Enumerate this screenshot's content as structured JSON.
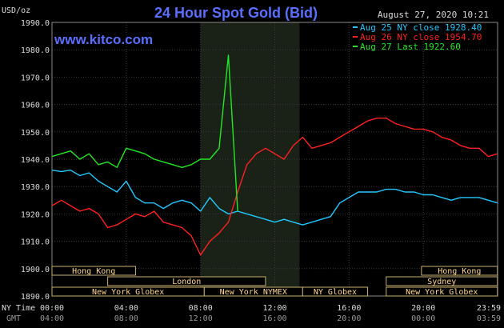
{
  "chart_data": {
    "type": "line",
    "title": "24 Hour Spot Gold (Bid)",
    "ylabel": "USD/oz",
    "watermark": "www.kitco.com",
    "timestamp": "August 27, 2020 10:21",
    "ylim": [
      1890,
      1990
    ],
    "y_ticks": [
      "1990.0",
      "1980.0",
      "1970.0",
      "1960.0",
      "1950.0",
      "1940.0",
      "1930.0",
      "1920.0",
      "1910.0",
      "1900.0",
      "1890.0"
    ],
    "x_tz_label_1": "NY Time",
    "x_tz_label_2": "GMT",
    "x_ticks_ny": [
      "00:00",
      "04:00",
      "08:00",
      "12:00",
      "16:00",
      "20:00",
      "23:59"
    ],
    "x_ticks_gmt": [
      "04:00",
      "08:00",
      "12:00",
      "16:00",
      "20:00",
      "00:00",
      "03:59"
    ],
    "grid": true,
    "legend_position": "top-right",
    "highlight_range_hours": [
      8.0,
      13.33
    ],
    "sessions": [
      {
        "label": "Hong Kong",
        "start": 0.0,
        "end": 4.5,
        "row": 0
      },
      {
        "label": "Hong Kong",
        "start": 19.9,
        "end": 23.99,
        "row": 0
      },
      {
        "label": "Sydney",
        "start": 18.0,
        "end": 23.99,
        "row": 1
      },
      {
        "label": "London",
        "start": 3.0,
        "end": 11.5,
        "row": 1
      },
      {
        "label": "New York Globex",
        "start": 0.0,
        "end": 8.2,
        "row": 2
      },
      {
        "label": "New York NYMEX",
        "start": 8.2,
        "end": 13.5,
        "row": 2
      },
      {
        "label": "NY Globex",
        "start": 13.5,
        "end": 17.0,
        "row": 2
      },
      {
        "label": "New York Globex",
        "start": 18.0,
        "end": 23.99,
        "row": 2
      }
    ],
    "x_hours": [
      0,
      0.5,
      1,
      1.5,
      2,
      2.5,
      3,
      3.5,
      4,
      4.5,
      5,
      5.5,
      6,
      6.5,
      7,
      7.5,
      8,
      8.5,
      9,
      9.5,
      10,
      10.5,
      11,
      11.5,
      12,
      12.5,
      13,
      13.5,
      14,
      14.5,
      15,
      15.5,
      16,
      16.5,
      17,
      17.5,
      18,
      18.5,
      19,
      19.5,
      20,
      20.5,
      21,
      21.5,
      22,
      22.5,
      23,
      23.5,
      23.99
    ],
    "series": [
      {
        "name": "Aug 25 NY close 1928.40",
        "color": "#22c8ff",
        "values": [
          1936,
          1935.5,
          1936,
          1934,
          1935,
          1932,
          1930,
          1928,
          1932,
          1926,
          1924,
          1924,
          1922,
          1924,
          1925,
          1924,
          1921,
          1926,
          1922,
          1920,
          1921,
          1920,
          1919,
          1918,
          1917,
          1918,
          1917,
          1916,
          1917,
          1918,
          1919,
          1924,
          1926,
          1928,
          1928,
          1928,
          1929,
          1929,
          1928,
          1928,
          1927,
          1927,
          1926,
          1925,
          1926,
          1926,
          1926,
          1925,
          1924
        ]
      },
      {
        "name": "Aug 26 NY close 1954.70",
        "color": "#ff2020",
        "values": [
          1923,
          1925,
          1923,
          1921,
          1922,
          1920,
          1915,
          1916,
          1918,
          1920,
          1919,
          1921,
          1917,
          1916,
          1915,
          1912,
          1905,
          1910,
          1913,
          1917,
          1928,
          1938,
          1942,
          1944,
          1942,
          1940,
          1945,
          1948,
          1944,
          1945,
          1946,
          1948,
          1950,
          1952,
          1954,
          1955,
          1955,
          1953,
          1952,
          1951,
          1951,
          1950,
          1948,
          1947,
          1945,
          1944,
          1944,
          1941,
          1942
        ]
      },
      {
        "name": "Aug 27 Last 1922.60",
        "color": "#22e822",
        "values": [
          1941,
          1942,
          1943,
          1940,
          1942,
          1938,
          1939,
          1937,
          1944,
          1943,
          1942,
          1940,
          1939,
          1938,
          1937,
          1938,
          1940,
          1940,
          1944,
          1978,
          1921,
          null,
          null,
          null,
          null,
          null,
          null,
          null,
          null,
          null,
          null,
          null,
          null,
          null,
          null,
          null,
          null,
          null,
          null,
          null,
          null,
          null,
          null,
          null,
          null,
          null,
          null,
          null,
          null
        ]
      }
    ]
  }
}
